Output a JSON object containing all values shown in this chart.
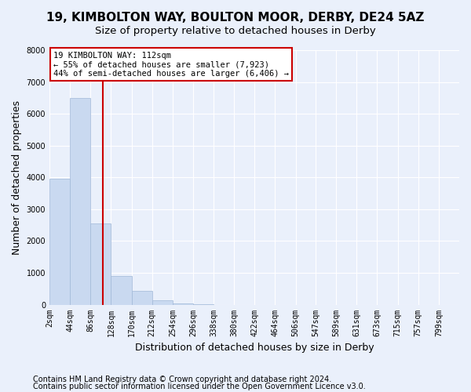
{
  "title": "19, KIMBOLTON WAY, BOULTON MOOR, DERBY, DE24 5AZ",
  "subtitle": "Size of property relative to detached houses in Derby",
  "xlabel": "Distribution of detached houses by size in Derby",
  "ylabel": "Number of detached properties",
  "footer_line1": "Contains HM Land Registry data © Crown copyright and database right 2024.",
  "footer_line2": "Contains public sector information licensed under the Open Government Licence v3.0.",
  "bar_edges": [
    2,
    44,
    86,
    128,
    170,
    212,
    254,
    296,
    338,
    380,
    422,
    464,
    506,
    547,
    589,
    631,
    673,
    715,
    757,
    799,
    841
  ],
  "bar_heights": [
    3950,
    6500,
    2550,
    900,
    430,
    130,
    35,
    10,
    0,
    0,
    0,
    0,
    0,
    0,
    0,
    0,
    0,
    0,
    0,
    0
  ],
  "bar_color": "#c9d9f0",
  "bar_edge_color": "#a0b8d8",
  "property_size": 112,
  "vline_color": "#cc0000",
  "annotation_line1": "19 KIMBOLTON WAY: 112sqm",
  "annotation_line2": "← 55% of detached houses are smaller (7,923)",
  "annotation_line3": "44% of semi-detached houses are larger (6,406) →",
  "annotation_box_color": "#ffffff",
  "annotation_box_edge": "#cc0000",
  "ylim": [
    0,
    8000
  ],
  "yticks": [
    0,
    1000,
    2000,
    3000,
    4000,
    5000,
    6000,
    7000,
    8000
  ],
  "background_color": "#eaf0fb",
  "grid_color": "#ffffff",
  "title_fontsize": 11,
  "subtitle_fontsize": 9.5,
  "axis_label_fontsize": 9,
  "tick_fontsize": 7,
  "annotation_fontsize": 7.5,
  "footer_fontsize": 7
}
